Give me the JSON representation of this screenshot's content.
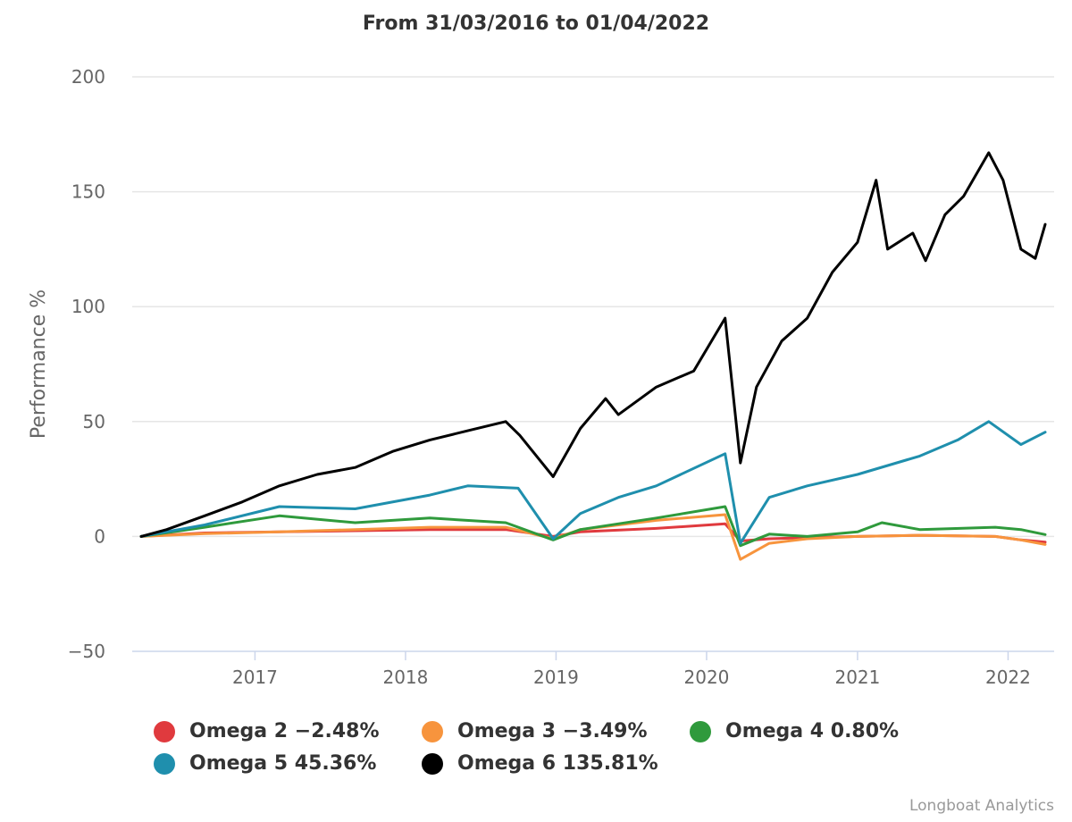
{
  "chart_data": {
    "type": "line",
    "title": "From 31/03/2016 to 01/04/2022",
    "ylabel": "Performance %",
    "xlabel": "",
    "ylim": [
      -50,
      200
    ],
    "yticks": [
      "200",
      "150",
      "100",
      "50",
      "0",
      "−50"
    ],
    "xticks": [
      "2017",
      "2018",
      "2019",
      "2020",
      "2021",
      "2022"
    ],
    "xrange": [
      "2016-03-31",
      "2022-04-01"
    ],
    "grid": true,
    "legend_position": "bottom",
    "series": [
      {
        "name": "Omega 2",
        "legend": "Omega 2 −2.48%",
        "color": "#e03a3e",
        "points": [
          [
            "2016-03-31",
            0
          ],
          [
            "2016-09-01",
            1.5
          ],
          [
            "2017-03-01",
            2
          ],
          [
            "2017-09-01",
            2.5
          ],
          [
            "2018-03-01",
            3
          ],
          [
            "2018-09-01",
            3
          ],
          [
            "2018-12-25",
            0
          ],
          [
            "2019-03-01",
            2
          ],
          [
            "2019-09-01",
            3.5
          ],
          [
            "2020-02-15",
            5.5
          ],
          [
            "2020-03-23",
            -2
          ],
          [
            "2020-06-01",
            -1
          ],
          [
            "2020-09-01",
            -0.5
          ],
          [
            "2021-01-01",
            0
          ],
          [
            "2021-06-01",
            0.5
          ],
          [
            "2021-12-01",
            0
          ],
          [
            "2022-02-01",
            -1.5
          ],
          [
            "2022-04-01",
            -2.48
          ]
        ]
      },
      {
        "name": "Omega 3",
        "legend": "Omega 3 −3.49%",
        "color": "#f7943d",
        "points": [
          [
            "2016-03-31",
            0
          ],
          [
            "2016-09-01",
            1.2
          ],
          [
            "2017-03-01",
            2
          ],
          [
            "2017-09-01",
            3
          ],
          [
            "2018-03-01",
            4
          ],
          [
            "2018-09-01",
            4
          ],
          [
            "2018-12-25",
            -1
          ],
          [
            "2019-03-01",
            3
          ],
          [
            "2019-09-01",
            7
          ],
          [
            "2020-02-15",
            9.5
          ],
          [
            "2020-03-23",
            -10
          ],
          [
            "2020-06-01",
            -3
          ],
          [
            "2020-09-01",
            -1
          ],
          [
            "2021-01-01",
            0
          ],
          [
            "2021-06-01",
            0.5
          ],
          [
            "2021-12-01",
            0
          ],
          [
            "2022-02-01",
            -1.5
          ],
          [
            "2022-04-01",
            -3.49
          ]
        ]
      },
      {
        "name": "Omega 4",
        "legend": "Omega 4 0.80%",
        "color": "#2f9a3c",
        "points": [
          [
            "2016-03-31",
            0
          ],
          [
            "2016-09-01",
            4
          ],
          [
            "2017-03-01",
            9
          ],
          [
            "2017-09-01",
            6
          ],
          [
            "2018-03-01",
            8
          ],
          [
            "2018-09-01",
            6
          ],
          [
            "2018-12-25",
            -1.5
          ],
          [
            "2019-03-01",
            3
          ],
          [
            "2019-09-01",
            8
          ],
          [
            "2020-02-15",
            13
          ],
          [
            "2020-03-23",
            -4
          ],
          [
            "2020-06-01",
            1
          ],
          [
            "2020-09-01",
            0
          ],
          [
            "2021-01-01",
            2
          ],
          [
            "2021-03-01",
            6
          ],
          [
            "2021-06-01",
            3
          ],
          [
            "2021-12-01",
            4
          ],
          [
            "2022-02-01",
            3
          ],
          [
            "2022-04-01",
            0.8
          ]
        ]
      },
      {
        "name": "Omega 5",
        "legend": "Omega 5 45.36%",
        "color": "#1f8fad",
        "points": [
          [
            "2016-03-31",
            0
          ],
          [
            "2016-09-01",
            5
          ],
          [
            "2017-03-01",
            13
          ],
          [
            "2017-09-01",
            12
          ],
          [
            "2018-03-01",
            18
          ],
          [
            "2018-06-01",
            22
          ],
          [
            "2018-10-01",
            21
          ],
          [
            "2018-12-25",
            -1
          ],
          [
            "2019-03-01",
            10
          ],
          [
            "2019-06-01",
            17
          ],
          [
            "2019-09-01",
            22
          ],
          [
            "2020-02-15",
            36
          ],
          [
            "2020-03-23",
            -3
          ],
          [
            "2020-06-01",
            17
          ],
          [
            "2020-09-01",
            22
          ],
          [
            "2021-01-01",
            27
          ],
          [
            "2021-06-01",
            35
          ],
          [
            "2021-09-01",
            42
          ],
          [
            "2021-11-15",
            50
          ],
          [
            "2022-02-01",
            40
          ],
          [
            "2022-04-01",
            45.36
          ]
        ]
      },
      {
        "name": "Omega 6",
        "legend": "Omega 6 135.81%",
        "color": "#000000",
        "points": [
          [
            "2016-03-31",
            0
          ],
          [
            "2016-06-01",
            3
          ],
          [
            "2016-09-01",
            9
          ],
          [
            "2016-12-01",
            15
          ],
          [
            "2017-03-01",
            22
          ],
          [
            "2017-06-01",
            27
          ],
          [
            "2017-09-01",
            30
          ],
          [
            "2017-12-01",
            37
          ],
          [
            "2018-03-01",
            42
          ],
          [
            "2018-06-01",
            46
          ],
          [
            "2018-09-01",
            50
          ],
          [
            "2018-10-05",
            44
          ],
          [
            "2018-12-25",
            26
          ],
          [
            "2019-03-01",
            47
          ],
          [
            "2019-05-01",
            60
          ],
          [
            "2019-06-01",
            53
          ],
          [
            "2019-09-01",
            65
          ],
          [
            "2019-12-01",
            72
          ],
          [
            "2020-02-15",
            95
          ],
          [
            "2020-03-23",
            32
          ],
          [
            "2020-05-01",
            65
          ],
          [
            "2020-07-01",
            85
          ],
          [
            "2020-09-01",
            95
          ],
          [
            "2020-11-01",
            115
          ],
          [
            "2021-01-01",
            128
          ],
          [
            "2021-02-15",
            155
          ],
          [
            "2021-03-15",
            125
          ],
          [
            "2021-05-15",
            132
          ],
          [
            "2021-06-15",
            120
          ],
          [
            "2021-08-01",
            140
          ],
          [
            "2021-09-15",
            148
          ],
          [
            "2021-11-15",
            167
          ],
          [
            "2021-12-20",
            155
          ],
          [
            "2022-02-01",
            125
          ],
          [
            "2022-03-08",
            121
          ],
          [
            "2022-04-01",
            135.81
          ]
        ]
      }
    ]
  },
  "credits": "Longboat Analytics"
}
